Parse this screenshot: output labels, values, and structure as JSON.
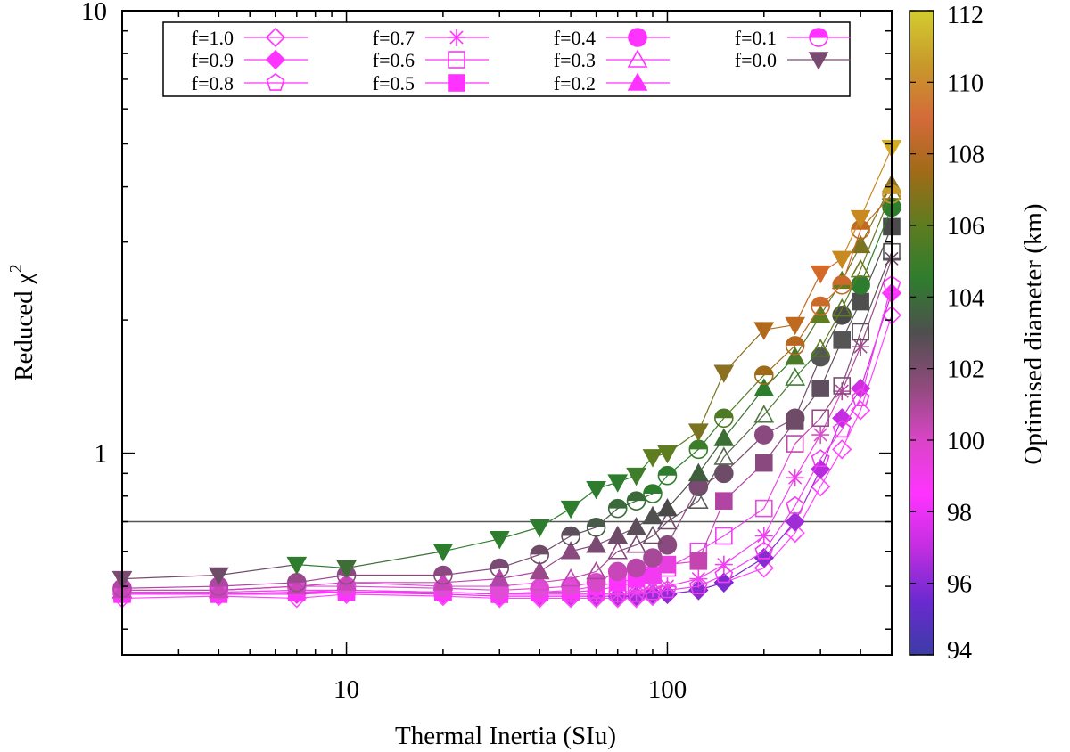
{
  "chart_data": {
    "type": "scatter",
    "title": "",
    "xlabel": "Thermal Inertia (SIu)",
    "ylabel_main": "Reduced χ",
    "ylabel_sup": "2",
    "xscale": "log",
    "yscale": "log",
    "xlim": [
      2,
      500
    ],
    "ylim": [
      0.35,
      10
    ],
    "x_ticks": [
      {
        "value": 10,
        "label": "10"
      },
      {
        "value": 100,
        "label": "100"
      }
    ],
    "y_ticks": [
      {
        "value": 1,
        "label": "1"
      },
      {
        "value": 10,
        "label": "10"
      }
    ],
    "reference_line": 0.7,
    "legend_position": "top",
    "x": [
      2,
      4,
      7,
      10,
      20,
      30,
      40,
      50,
      60,
      70,
      80,
      90,
      100,
      125,
      150,
      200,
      250,
      300,
      350,
      400,
      500
    ],
    "series": [
      {
        "name": "f=1.0",
        "marker": "diamond",
        "filled": false,
        "values": [
          0.47,
          0.475,
          0.47,
          0.48,
          0.475,
          0.47,
          0.47,
          0.47,
          0.47,
          0.47,
          0.47,
          0.475,
          0.48,
          0.49,
          0.51,
          0.55,
          0.66,
          0.84,
          1.02,
          1.25,
          2.05
        ]
      },
      {
        "name": "f=0.9",
        "marker": "diamond",
        "filled": true,
        "values": [
          0.48,
          0.48,
          0.48,
          0.485,
          0.48,
          0.475,
          0.475,
          0.475,
          0.475,
          0.475,
          0.475,
          0.48,
          0.48,
          0.49,
          0.51,
          0.58,
          0.7,
          0.92,
          1.2,
          1.4,
          2.3
        ]
      },
      {
        "name": "f=0.8",
        "marker": "pentagon",
        "filled": false,
        "values": [
          0.48,
          0.48,
          0.485,
          0.49,
          0.485,
          0.48,
          0.48,
          0.48,
          0.48,
          0.48,
          0.48,
          0.485,
          0.49,
          0.5,
          0.53,
          0.6,
          0.76,
          0.97,
          1.13,
          1.33,
          2.4
        ]
      },
      {
        "name": "f=0.7",
        "marker": "star",
        "filled": false,
        "values": [
          0.485,
          0.485,
          0.49,
          0.49,
          0.485,
          0.48,
          0.48,
          0.48,
          0.48,
          0.48,
          0.485,
          0.495,
          0.5,
          0.52,
          0.56,
          0.65,
          0.88,
          1.1,
          1.38,
          1.74,
          2.75
        ]
      },
      {
        "name": "f=0.6",
        "marker": "square",
        "filled": false,
        "values": [
          0.485,
          0.485,
          0.49,
          0.49,
          0.485,
          0.48,
          0.485,
          0.485,
          0.49,
          0.5,
          0.51,
          0.53,
          0.55,
          0.6,
          0.65,
          0.75,
          1.05,
          1.2,
          1.42,
          1.88,
          2.85
        ]
      },
      {
        "name": "f=0.5",
        "marker": "square",
        "filled": true,
        "values": [
          0.48,
          0.48,
          0.485,
          0.485,
          0.485,
          0.48,
          0.485,
          0.49,
          0.5,
          0.51,
          0.52,
          0.53,
          0.56,
          0.57,
          0.78,
          0.95,
          1.18,
          1.4,
          1.8,
          2.2,
          3.25
        ]
      },
      {
        "name": "f=0.4",
        "marker": "circle",
        "filled": true,
        "values": [
          0.49,
          0.49,
          0.5,
          0.5,
          0.495,
          0.49,
          0.495,
          0.5,
          0.51,
          0.54,
          0.55,
          0.58,
          0.62,
          0.84,
          0.9,
          1.1,
          1.2,
          1.65,
          2.05,
          2.4,
          3.6
        ]
      },
      {
        "name": "f=0.3",
        "marker": "triangle-up",
        "filled": false,
        "values": [
          0.49,
          0.49,
          0.5,
          0.51,
          0.5,
          0.5,
          0.51,
          0.52,
          0.54,
          0.6,
          0.62,
          0.65,
          0.7,
          0.78,
          0.98,
          1.22,
          1.48,
          1.72,
          2.12,
          2.6,
          3.9
        ]
      },
      {
        "name": "f=0.2",
        "marker": "triangle-up",
        "filled": true,
        "values": [
          0.49,
          0.49,
          0.5,
          0.51,
          0.51,
          0.52,
          0.54,
          0.6,
          0.62,
          0.65,
          0.68,
          0.72,
          0.75,
          0.9,
          1.08,
          1.4,
          1.65,
          2.05,
          2.45,
          2.95,
          4.05
        ]
      },
      {
        "name": "f=0.1",
        "marker": "half-circle",
        "filled": true,
        "values": [
          0.495,
          0.5,
          0.51,
          0.53,
          0.53,
          0.55,
          0.59,
          0.65,
          0.68,
          0.75,
          0.78,
          0.81,
          0.89,
          1.02,
          1.2,
          1.5,
          1.75,
          2.15,
          2.4,
          3.2,
          3.85
        ]
      },
      {
        "name": "f=0.0",
        "marker": "triangle-down",
        "filled": true,
        "values": [
          0.52,
          0.53,
          0.56,
          0.55,
          0.6,
          0.64,
          0.68,
          0.75,
          0.83,
          0.86,
          0.89,
          0.98,
          1.0,
          1.12,
          1.52,
          1.9,
          1.95,
          2.55,
          2.75,
          3.4,
          4.9
        ]
      }
    ],
    "colorbar": {
      "label": "Optimised diameter (km)",
      "range": [
        94,
        112
      ],
      "ticks": [
        "94",
        "96",
        "98",
        "100",
        "102",
        "104",
        "106",
        "108",
        "110",
        "112"
      ],
      "stops": [
        "#3c3ca5",
        "#6a2ad0",
        "#c22ee0",
        "#ff33ff",
        "#d945c6",
        "#8f4b7c",
        "#4f4f4f",
        "#2e7d2e",
        "#5e7c20",
        "#a06b18",
        "#d46a3a",
        "#c79a2a",
        "#d4cc30"
      ]
    },
    "point_colors": {
      "f=1.0": [
        "#ff44ff",
        "#ff44ff",
        "#ff44ff",
        "#ff44ff",
        "#ff44ff",
        "#ff44ff",
        "#ff44ff",
        "#ff44ff",
        "#ff44ff",
        "#ff44ff",
        "#ff44ff",
        "#ff44ff",
        "#ff44ff",
        "#ff44ff",
        "#ff44ff",
        "#ff44ff",
        "#ff44ff",
        "#ff44ff",
        "#ff44ff",
        "#ff44ff",
        "#ff44ff"
      ],
      "f=0.9": [
        "#f030ee",
        "#f030ee",
        "#f030ee",
        "#f030ee",
        "#f030ee",
        "#f030ee",
        "#e52ee8",
        "#d22de4",
        "#c22de0",
        "#b02cdc",
        "#a22cd8",
        "#9a2bd5",
        "#8f2bd2",
        "#8a2bd0",
        "#7e2ace",
        "#8a2bd0",
        "#9f2cd6",
        "#b72cdd",
        "#c42de0",
        "#d02de3",
        "#ff33ff"
      ],
      "f=0.8": [
        "#f040f0",
        "#f040f0",
        "#f040f0",
        "#f040f0",
        "#f040f0",
        "#f040f0",
        "#f040f0",
        "#f040f0",
        "#f040f0",
        "#f040f0",
        "#f040f0",
        "#f040f0",
        "#f040f0",
        "#f040f0",
        "#f040f0",
        "#f040f0",
        "#f040f0",
        "#f040f0",
        "#f040f0",
        "#f040f0",
        "#ff44ff"
      ],
      "f=0.7": [
        "#f040f0",
        "#f040f0",
        "#f040f0",
        "#f040f0",
        "#f040f0",
        "#f040f0",
        "#f040f0",
        "#f040f0",
        "#f040f0",
        "#f040f0",
        "#f040f0",
        "#f040f0",
        "#f040f0",
        "#f040f0",
        "#f040f0",
        "#f040f0",
        "#ee3ee8",
        "#d84dc8",
        "#b048a2",
        "#9a4c88",
        "#6e4c66"
      ],
      "f=0.6": [
        "#f040f0",
        "#f040f0",
        "#f040f0",
        "#f040f0",
        "#f040f0",
        "#f040f0",
        "#f040f0",
        "#f040f0",
        "#f040f0",
        "#f040f0",
        "#f040f0",
        "#f040f0",
        "#f040f0",
        "#f040f0",
        "#f040f0",
        "#e84ae0",
        "#c047ac",
        "#944a84",
        "#7a4d70",
        "#5c4e5a",
        "#555555"
      ],
      "f=0.5": [
        "#ff33ff",
        "#ff33ff",
        "#ff33ff",
        "#ff33ff",
        "#ff33ff",
        "#ff33ff",
        "#ff33ff",
        "#ff33ff",
        "#ff33ff",
        "#ff33ff",
        "#ff33ff",
        "#f23af2",
        "#e840e0",
        "#c444b0",
        "#b045a4",
        "#8a4a80",
        "#6e4c68",
        "#5e4e5e",
        "#555555",
        "#4e4e4e",
        "#4a4a4a"
      ],
      "f=0.4": [
        "#e24ad8",
        "#e24ad8",
        "#e24ad8",
        "#e24ad8",
        "#e24ad8",
        "#e24ad8",
        "#e24ad8",
        "#e24ad8",
        "#d848ca",
        "#c846b8",
        "#b846a8",
        "#a84898",
        "#8a4a80",
        "#7a4b72",
        "#6e4c68",
        "#8a4a80",
        "#6e4c68",
        "#555555",
        "#4a4a4a",
        "#2e7d2e",
        "#2e7d2e"
      ],
      "f=0.3": [
        "#e24ad8",
        "#e24ad8",
        "#e24ad8",
        "#e24ad8",
        "#e24ad8",
        "#e24ad8",
        "#d848ca",
        "#c046b0",
        "#a44896",
        "#8a4a80",
        "#7a4b72",
        "#6e4c68",
        "#6e4c68",
        "#5c5a5a",
        "#5a6a50",
        "#4e7a3e",
        "#3e7e34",
        "#5e7c20",
        "#5e7c20",
        "#6a7820",
        "#7a7420"
      ],
      "f=0.2": [
        "#c846b8",
        "#c846b8",
        "#c846b8",
        "#c846b8",
        "#c846b8",
        "#b046a8",
        "#9a4a8c",
        "#8a4a80",
        "#7a4b72",
        "#6e4c68",
        "#5c4e5a",
        "#505050",
        "#4a4a4a",
        "#3e5e3e",
        "#3a7034",
        "#2e7d2e",
        "#4a7a2a",
        "#5e7c20",
        "#6a7820",
        "#7a7420",
        "#8a7020"
      ],
      "f=0.1": [
        "#b046a4",
        "#b046a4",
        "#9a4a8c",
        "#8a4a80",
        "#8a4a80",
        "#7a4b72",
        "#6e4c68",
        "#5c4e5a",
        "#4a5a4a",
        "#3a6a3a",
        "#3a6a3a",
        "#2e7d2e",
        "#2e7d2e",
        "#3a7e2a",
        "#4e7a24",
        "#a06b18",
        "#b8681e",
        "#cc6a2a",
        "#cc6a2a",
        "#c06a20",
        "#c79a2a"
      ],
      "f=0.0": [
        "#7a4b72",
        "#6e4c68",
        "#2e7d2e",
        "#3e6e36",
        "#2e7d2e",
        "#2e7d2e",
        "#2e7d2e",
        "#2e7d2e",
        "#2e7d2e",
        "#2e7d2e",
        "#3e7e2a",
        "#5e7c20",
        "#5e7c20",
        "#7a7420",
        "#8a7020",
        "#b06a1a",
        "#c06a20",
        "#d46a2a",
        "#c88a20",
        "#c88a20",
        "#d4aa20"
      ]
    }
  }
}
